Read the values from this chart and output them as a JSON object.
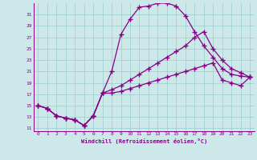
{
  "xlabel": "Windchill (Refroidissement éolien,°C)",
  "xlim": [
    -0.5,
    23.5
  ],
  "ylim": [
    10.5,
    33
  ],
  "yticks": [
    11,
    13,
    15,
    17,
    19,
    21,
    23,
    25,
    27,
    29,
    31
  ],
  "xticks": [
    0,
    1,
    2,
    3,
    4,
    5,
    6,
    7,
    8,
    9,
    10,
    11,
    12,
    13,
    14,
    15,
    16,
    17,
    18,
    19,
    20,
    21,
    22,
    23
  ],
  "bg_color": "#cce8e8",
  "grid_color": "#99cccc",
  "line_color": "#880088",
  "line1_x": [
    0,
    1,
    2,
    3,
    4,
    5,
    6,
    7,
    8,
    9,
    10,
    11,
    12,
    13,
    14,
    15,
    16,
    17,
    18,
    19,
    20,
    21,
    22,
    23
  ],
  "line1_y": [
    15,
    14.5,
    13.2,
    12.8,
    12.5,
    11.5,
    13.2,
    17.2,
    21.0,
    27.5,
    30.2,
    32.3,
    32.5,
    33.0,
    33.0,
    32.5,
    30.8,
    28.0,
    25.5,
    23.5,
    21.5,
    20.5,
    20.2,
    20.0
  ],
  "line2_x": [
    0,
    1,
    2,
    3,
    4,
    5,
    6,
    7,
    8,
    9,
    10,
    11,
    12,
    13,
    14,
    15,
    16,
    17,
    18,
    19,
    20,
    21,
    22,
    23
  ],
  "line2_y": [
    15,
    14.5,
    13.2,
    12.8,
    12.5,
    11.5,
    13.2,
    17.2,
    17.8,
    18.5,
    19.5,
    20.5,
    21.5,
    22.5,
    23.5,
    24.5,
    25.5,
    27.0,
    28.0,
    25.0,
    23.0,
    21.5,
    20.8,
    20.0
  ],
  "line3_x": [
    0,
    1,
    2,
    3,
    4,
    5,
    6,
    7,
    8,
    9,
    10,
    11,
    12,
    13,
    14,
    15,
    16,
    17,
    18,
    19,
    20,
    21,
    22,
    23
  ],
  "line3_y": [
    15,
    14.5,
    13.2,
    12.8,
    12.5,
    11.5,
    13.2,
    17.2,
    17.2,
    17.5,
    18.0,
    18.5,
    19.0,
    19.5,
    20.0,
    20.5,
    21.0,
    21.5,
    22.0,
    22.5,
    19.5,
    19.0,
    18.5,
    20.0
  ]
}
